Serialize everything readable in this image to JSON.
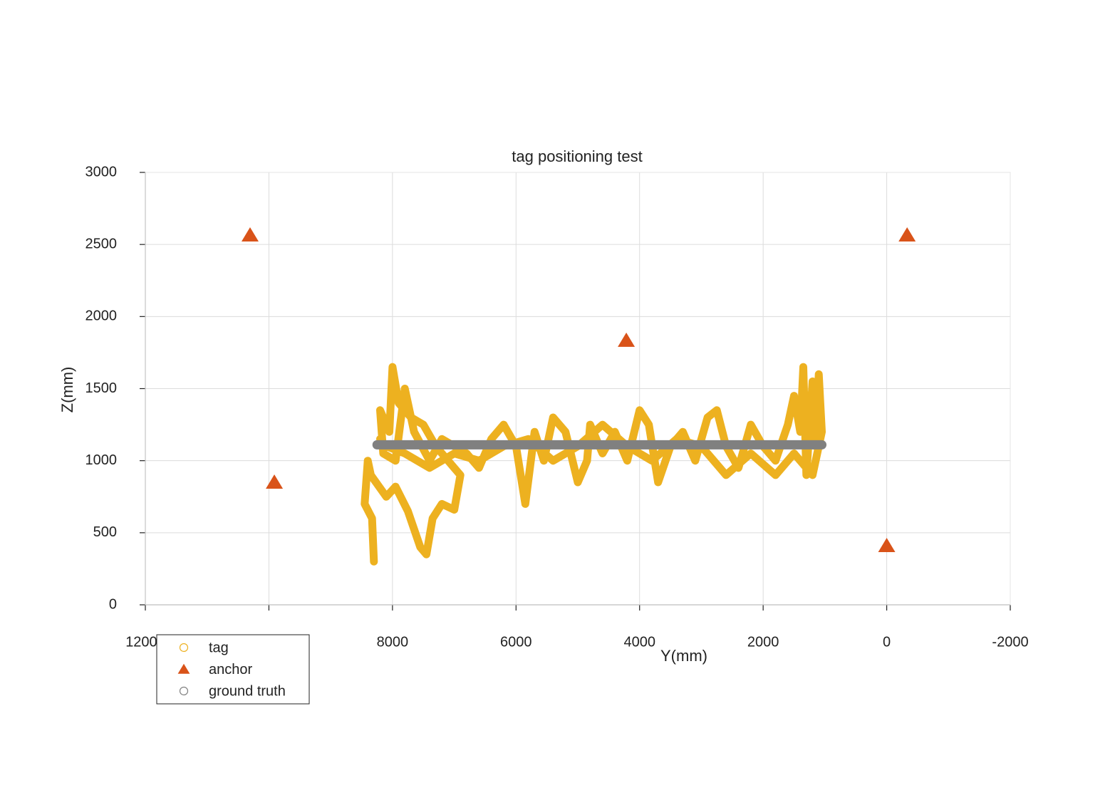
{
  "chart_data": {
    "type": "scatter",
    "title": "tag positioning test",
    "x_label": "Y(mm)",
    "y_label": "Z(mm)",
    "xlim": [
      12000,
      -2000
    ],
    "xticks": [
      12000,
      10000,
      8000,
      6000,
      4000,
      2000,
      0,
      -2000
    ],
    "ylim": [
      0,
      3000
    ],
    "yticks": [
      0,
      500,
      1000,
      1500,
      2000,
      2500,
      3000
    ],
    "grid": true,
    "legend": "lower left",
    "series": [
      {
        "name": "tag",
        "color": "#EDB120",
        "x": [
          8300,
          8330,
          8450,
          8400,
          8350,
          8100,
          7950,
          7750,
          7550,
          7450,
          7350,
          7200,
          7000,
          6900,
          7100,
          7300,
          7500,
          7700,
          7900,
          8000,
          8050,
          8200,
          8150,
          7950,
          7800,
          7650,
          7400,
          7200,
          6800,
          6600,
          6400,
          6200,
          6000,
          5850,
          5700,
          5550,
          5400,
          5200,
          5000,
          4850,
          4800,
          4600,
          4400,
          4200,
          4000,
          3850,
          3700,
          3500,
          3300,
          3100,
          2900,
          2750,
          2600,
          2400,
          2200,
          2000,
          1800,
          1600,
          1500,
          1400,
          1350,
          1300,
          1200,
          1150,
          1100,
          1050,
          1200,
          1500,
          1800,
          2200,
          2600,
          3000,
          3400,
          3800,
          4200,
          4600,
          5000,
          5400,
          5800,
          6200,
          6600,
          7000,
          7400,
          7800,
          8100,
          8200
        ],
        "values": [
          300,
          600,
          700,
          1000,
          900,
          750,
          820,
          650,
          400,
          350,
          600,
          700,
          660,
          900,
          1000,
          1100,
          1250,
          1300,
          1400,
          1650,
          1200,
          1350,
          1050,
          1000,
          1500,
          1200,
          1000,
          1150,
          1050,
          950,
          1150,
          1250,
          1100,
          700,
          1200,
          1000,
          1300,
          1200,
          850,
          1000,
          1250,
          1050,
          1200,
          1000,
          1350,
          1250,
          850,
          1100,
          1200,
          1000,
          1300,
          1350,
          1100,
          950,
          1250,
          1100,
          1000,
          1250,
          1450,
          1200,
          1650,
          900,
          1550,
          1100,
          1600,
          1200,
          900,
          1050,
          900,
          1050,
          900,
          1100,
          1150,
          1000,
          1100,
          1250,
          1100,
          1000,
          1150,
          1100,
          1000,
          1050,
          950,
          1050,
          1100,
          1150
        ]
      },
      {
        "name": "anchor",
        "color": "#D95319",
        "x": [
          10305,
          9912,
          4215,
          -330,
          0
        ],
        "values": [
          2565,
          850,
          1834,
          2565,
          410
        ]
      },
      {
        "name": "ground truth",
        "color": "#808080",
        "x": [
          8250,
          7890,
          7530,
          7170,
          6810,
          6450,
          6090,
          5730,
          5370,
          5010,
          4650,
          4290,
          3930,
          3570,
          3210,
          2850,
          2490,
          2130,
          1770,
          1410,
          1050
        ],
        "values": [
          1110,
          1110,
          1110,
          1110,
          1110,
          1110,
          1110,
          1110,
          1110,
          1110,
          1110,
          1110,
          1110,
          1110,
          1110,
          1110,
          1110,
          1110,
          1110,
          1110,
          1110
        ]
      }
    ]
  }
}
